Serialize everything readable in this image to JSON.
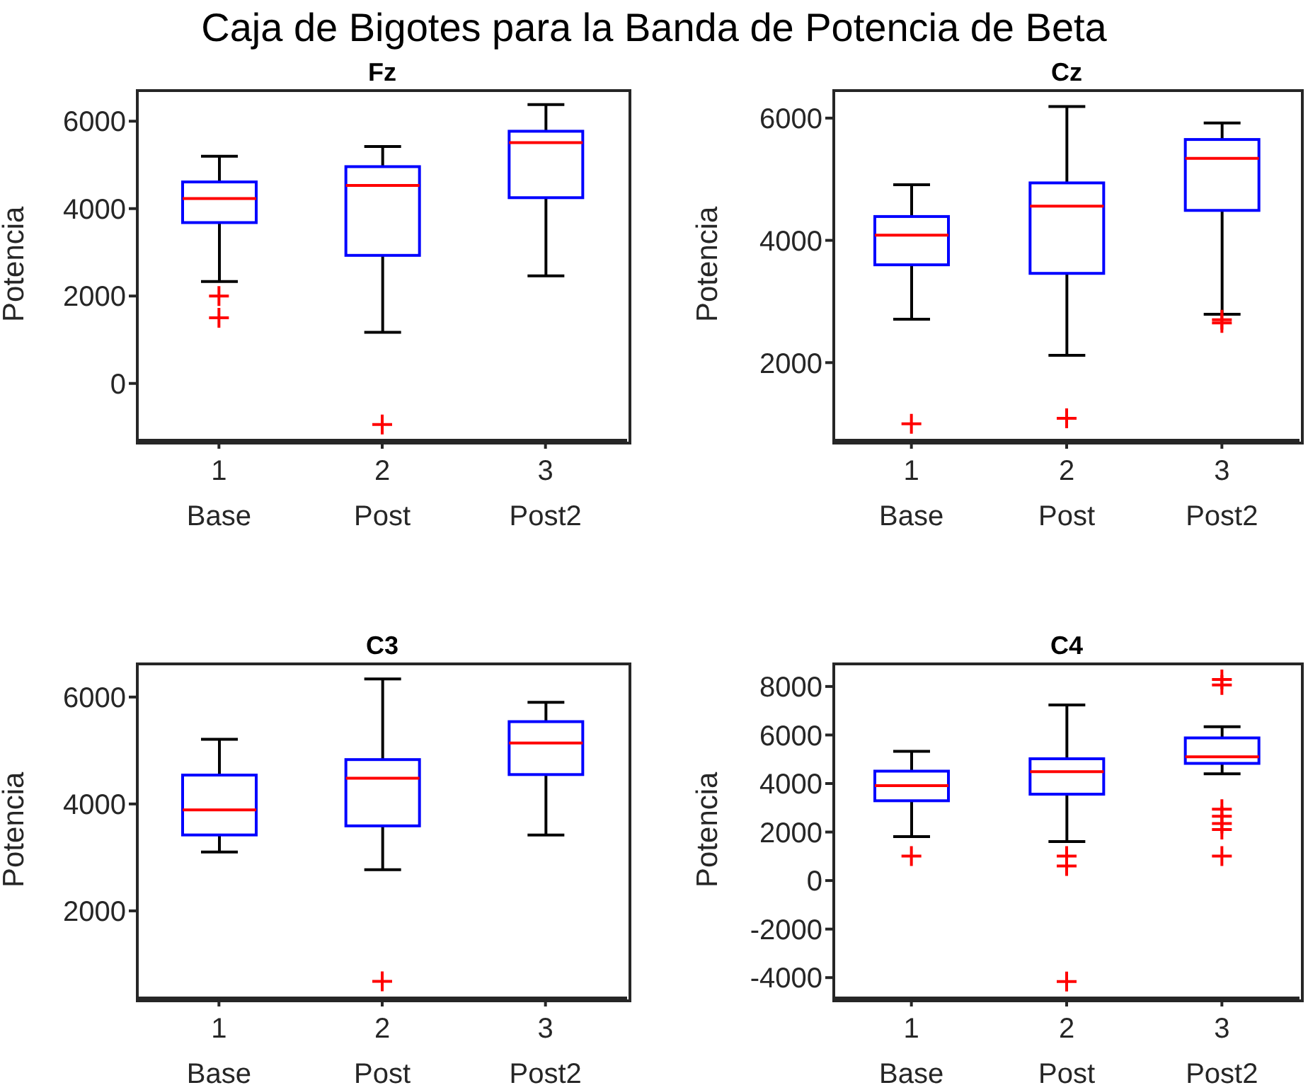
{
  "chart_data": [
    {
      "type": "box",
      "title": "Fz",
      "annotations": [
        "Caja de Bigotes para la Banda de Potencia de Beta"
      ],
      "ylabel": "Potencia",
      "categories": [
        "1\nBase",
        "2\nPost",
        "3\nPost2"
      ],
      "ylim": [
        -1300,
        6700
      ],
      "yticks": [
        0,
        2000,
        4000,
        6000
      ],
      "grid": false,
      "legend": false,
      "series": [
        {
          "color": "#0000ff",
          "boxes": [
            {
              "low": 2330,
              "q1": 3680,
              "median": 4230,
              "q3": 4610,
              "high": 5200,
              "outliers": [
                2000,
                1500
              ]
            },
            {
              "low": 1170,
              "q1": 2930,
              "median": 4530,
              "q3": 4960,
              "high": 5420,
              "outliers": [
                -940
              ]
            },
            {
              "low": 2460,
              "q1": 4250,
              "median": 5510,
              "q3": 5770,
              "high": 6380
            }
          ]
        }
      ]
    },
    {
      "type": "box",
      "title": "Cz",
      "ylabel": "Potencia",
      "categories": [
        "1\nBase",
        "2\nPost",
        "3\nPost2"
      ],
      "ylim": [
        730,
        6450
      ],
      "yticks": [
        2000,
        4000,
        6000
      ],
      "grid": false,
      "legend": false,
      "series": [
        {
          "color": "#0000ff",
          "boxes": [
            {
              "low": 2710,
              "q1": 3600,
              "median": 4085,
              "q3": 4390,
              "high": 4910,
              "outliers": [
                1000
              ]
            },
            {
              "low": 2120,
              "q1": 3460,
              "median": 4560,
              "q3": 4940,
              "high": 6190,
              "outliers": [
                1090
              ]
            },
            {
              "low": 2790,
              "q1": 4490,
              "median": 5340,
              "q3": 5650,
              "high": 5920,
              "outliers": [
                2700,
                2650
              ]
            }
          ]
        }
      ]
    },
    {
      "type": "box",
      "title": "C3",
      "ylabel": "Potencia",
      "categories": [
        "1\nBase",
        "2\nPost",
        "3\nPost2"
      ],
      "ylim": [
        370,
        6620
      ],
      "yticks": [
        2000,
        4000,
        6000
      ],
      "grid": false,
      "legend": false,
      "series": [
        {
          "color": "#0000ff",
          "boxes": [
            {
              "low": 3100,
              "q1": 3420,
              "median": 3890,
              "q3": 4540,
              "high": 5210
            },
            {
              "low": 2770,
              "q1": 3590,
              "median": 4480,
              "q3": 4830,
              "high": 6340,
              "outliers": [
                680
              ]
            },
            {
              "low": 3420,
              "q1": 4550,
              "median": 5140,
              "q3": 5540,
              "high": 5900
            }
          ]
        }
      ]
    },
    {
      "type": "box",
      "title": "C4",
      "ylabel": "Potencia",
      "categories": [
        "1\nBase",
        "2\nPost",
        "3\nPost2"
      ],
      "ylim": [
        -4840,
        8930
      ],
      "yticks": [
        -4000,
        -2000,
        0,
        2000,
        4000,
        6000,
        8000
      ],
      "grid": false,
      "legend": false,
      "series": [
        {
          "color": "#0000ff",
          "boxes": [
            {
              "low": 1810,
              "q1": 3290,
              "median": 3910,
              "q3": 4510,
              "high": 5330,
              "outliers": [
                1010
              ]
            },
            {
              "low": 1610,
              "q1": 3560,
              "median": 4490,
              "q3": 5020,
              "high": 7240,
              "outliers": [
                1010,
                600,
                -4160
              ]
            },
            {
              "low": 4400,
              "q1": 4830,
              "median": 5100,
              "q3": 5880,
              "high": 6340,
              "outliers": [
                8290,
                8060,
                2940,
                2650,
                2350,
                2100,
                1010
              ]
            }
          ]
        }
      ]
    }
  ]
}
